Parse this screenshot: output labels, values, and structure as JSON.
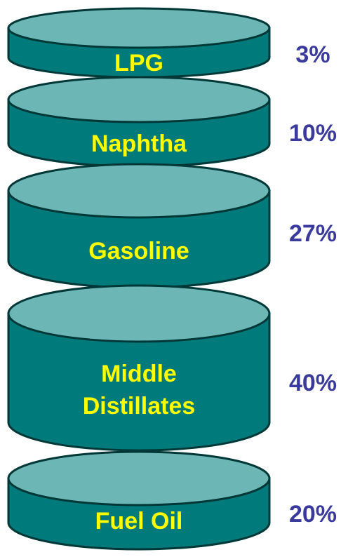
{
  "items": [
    {
      "label": [
        "LPG"
      ],
      "percent": "3%"
    },
    {
      "label": [
        "Naphtha"
      ],
      "percent": "10%"
    },
    {
      "label": [
        "Gasoline"
      ],
      "percent": "27%"
    },
    {
      "label": [
        "Middle",
        "Distillates"
      ],
      "percent": "40%"
    },
    {
      "label": [
        "Fuel Oil"
      ],
      "percent": "20%"
    }
  ]
}
